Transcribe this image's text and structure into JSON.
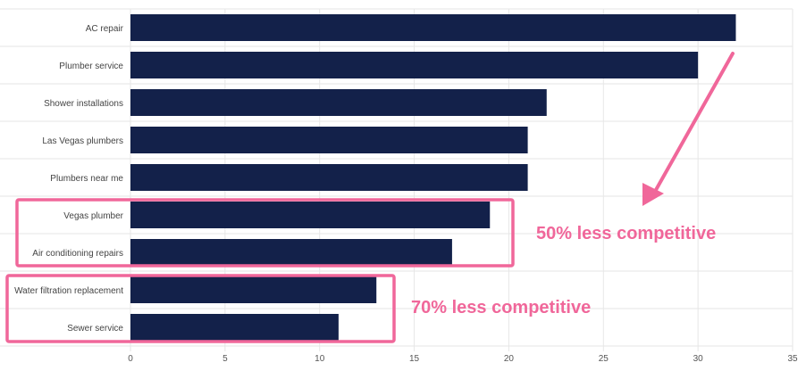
{
  "chart_data": {
    "type": "bar",
    "orientation": "horizontal",
    "categories": [
      "AC repair",
      "Plumber service",
      "Shower installations",
      "Las Vegas plumbers",
      "Plumbers near me",
      "Vegas plumber",
      "Air conditioning repairs",
      "Water filtration replacement",
      "Sewer service"
    ],
    "values": [
      32,
      30,
      22,
      21,
      21,
      19,
      17,
      13,
      11
    ],
    "xlim": [
      0,
      35
    ],
    "xticks": [
      "0",
      "5",
      "10",
      "15",
      "20",
      "25",
      "30",
      "35"
    ],
    "grid": true,
    "bar_color": "#13214a",
    "title": "",
    "xlabel": "",
    "ylabel": ""
  },
  "annotations": {
    "color": "#f0679a",
    "groups": [
      {
        "text": "50% less competitive",
        "categories": [
          "Vegas plumber",
          "Air conditioning repairs"
        ]
      },
      {
        "text": "70% less competitive",
        "categories": [
          "Water filtration replacement",
          "Sewer service"
        ]
      }
    ]
  }
}
